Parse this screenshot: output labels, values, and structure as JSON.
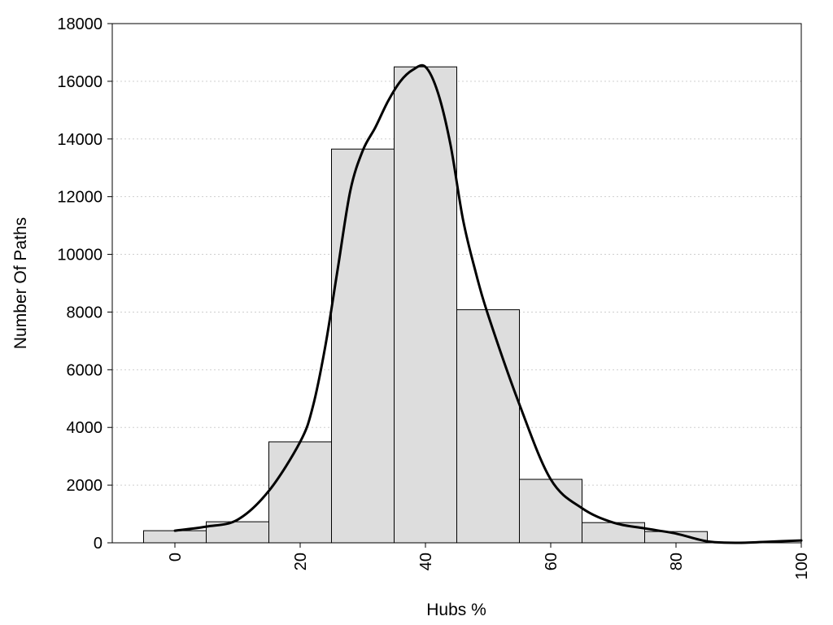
{
  "chart_data": {
    "type": "bar",
    "subtype": "histogram-with-density-curve",
    "title": "",
    "xlabel": "Hubs %",
    "ylabel": "Number Of Paths",
    "xlim": [
      -10,
      100
    ],
    "ylim": [
      0,
      18000
    ],
    "x_ticks": [
      "0",
      "20",
      "40",
      "60",
      "80",
      "100"
    ],
    "x_tick_values": [
      0,
      20,
      40,
      60,
      80,
      100
    ],
    "y_ticks": [
      "0",
      "2000",
      "4000",
      "6000",
      "8000",
      "10000",
      "12000",
      "14000",
      "16000",
      "18000"
    ],
    "y_tick_values": [
      0,
      2000,
      4000,
      6000,
      8000,
      10000,
      12000,
      14000,
      16000,
      18000
    ],
    "grid": "horizontal dotted",
    "legend": "none",
    "bins": [
      {
        "x0": -5,
        "x1": 5,
        "value": 420
      },
      {
        "x0": 5,
        "x1": 15,
        "value": 730
      },
      {
        "x0": 15,
        "x1": 25,
        "value": 3500
      },
      {
        "x0": 25,
        "x1": 35,
        "value": 13650
      },
      {
        "x0": 35,
        "x1": 45,
        "value": 16500
      },
      {
        "x0": 45,
        "x1": 55,
        "value": 8080
      },
      {
        "x0": 55,
        "x1": 65,
        "value": 2200
      },
      {
        "x0": 65,
        "x1": 75,
        "value": 700
      },
      {
        "x0": 75,
        "x1": 85,
        "value": 390
      },
      {
        "x0": 85,
        "x1": 95,
        "value": 0
      }
    ],
    "density_curve": {
      "x": [
        0,
        5,
        10,
        15,
        20,
        22,
        24,
        26,
        28,
        30,
        32,
        34,
        36,
        38,
        40,
        42,
        44,
        46,
        48,
        50,
        55,
        60,
        65,
        70,
        75,
        80,
        85,
        90,
        95,
        100
      ],
      "y": [
        420,
        560,
        800,
        1800,
        3500,
        4700,
        6800,
        9500,
        12200,
        13600,
        14400,
        15300,
        16000,
        16400,
        16500,
        15600,
        13800,
        11200,
        9400,
        7900,
        4800,
        2200,
        1200,
        700,
        500,
        320,
        50,
        0,
        40,
        80
      ]
    },
    "colors": {
      "bar_fill": "#dddddd",
      "bar_stroke": "#000000",
      "line": "#000000"
    }
  }
}
